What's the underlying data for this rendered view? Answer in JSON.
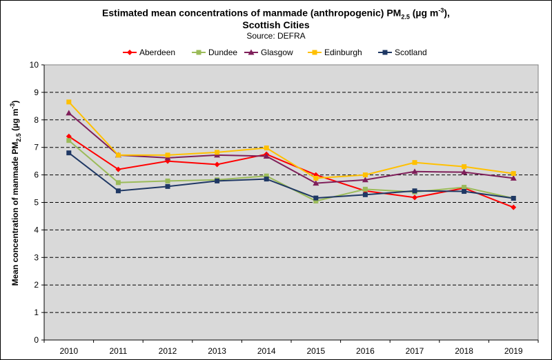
{
  "chart_data": {
    "type": "line",
    "title_line1": "Estimated mean concentrations of manmade (anthropogenic) PM",
    "title_sub": "2.5",
    "title_units": " (µg m",
    "title_sup": "-3",
    "title_end": "),",
    "title_line2": "Scottish Cities",
    "subtitle": "Source: DEFRA",
    "ylabel_main": "Mean concentration of manmade PM",
    "ylabel_sub": "2.5",
    "ylabel_units": " (µg m",
    "ylabel_sup": "-3",
    "ylabel_end": ")",
    "ylim": [
      0,
      10
    ],
    "yticks": [
      "0",
      "1",
      "2",
      "3",
      "4",
      "5",
      "6",
      "7",
      "8",
      "9",
      "10"
    ],
    "categories": [
      "2010",
      "2011",
      "2012",
      "2013",
      "2014",
      "2015",
      "2016",
      "2017",
      "2018",
      "2019"
    ],
    "grid": "horizontal dashed",
    "legend_position": "top",
    "background_color": "#d9d9d9",
    "series": [
      {
        "name": "Aberdeen",
        "color": "#ff0000",
        "marker": "diamond",
        "values": [
          7.4,
          6.2,
          6.5,
          6.38,
          6.75,
          6.0,
          5.42,
          5.18,
          5.52,
          4.82
        ]
      },
      {
        "name": "Dundee",
        "color": "#9bbb59",
        "marker": "square",
        "values": [
          7.25,
          5.72,
          5.78,
          5.82,
          5.96,
          5.05,
          5.48,
          5.38,
          5.55,
          5.15
        ]
      },
      {
        "name": "Glasgow",
        "color": "#7f1f5a",
        "marker": "triangle",
        "values": [
          8.25,
          6.72,
          6.62,
          6.72,
          6.68,
          5.7,
          5.82,
          6.12,
          6.1,
          5.88
        ]
      },
      {
        "name": "Edinburgh",
        "color": "#ffc000",
        "marker": "square",
        "values": [
          8.65,
          6.72,
          6.72,
          6.82,
          6.98,
          5.88,
          6.0,
          6.45,
          6.3,
          6.05
        ]
      },
      {
        "name": "Scotland",
        "color": "#1f3864",
        "marker": "square",
        "values": [
          6.8,
          5.42,
          5.58,
          5.78,
          5.85,
          5.16,
          5.28,
          5.42,
          5.4,
          5.15
        ]
      }
    ]
  }
}
